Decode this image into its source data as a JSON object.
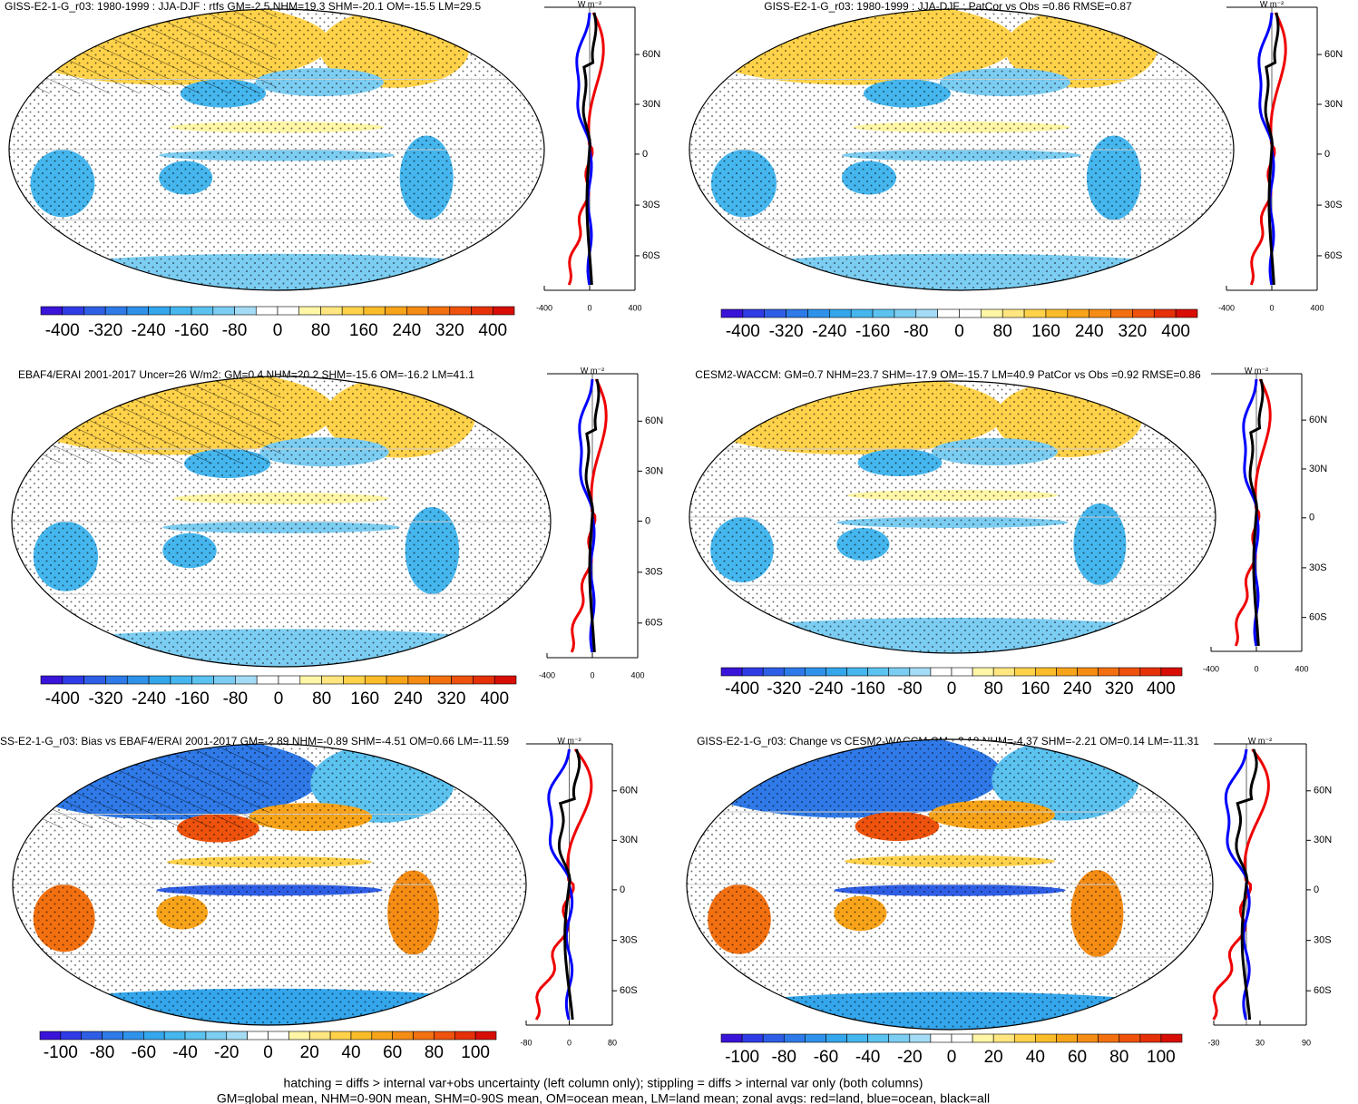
{
  "panels": [
    {
      "title": "GISS-E2-1-G_r03: 1980-1999 : JJA-DJF : rtfs GM=-2.5 NHM=19.3 SHM=-20.1 OM=-15.5 LM=29.5",
      "colorbar_labels": [
        -400,
        -320,
        -240,
        -160,
        -80,
        0,
        80,
        160,
        240,
        320,
        400
      ],
      "profile": {
        "unit": "W m⁻²",
        "lat_ticks": [
          "60N",
          "30N",
          "0",
          "30S",
          "60S"
        ],
        "x_ticks": [
          -400,
          0,
          400
        ]
      }
    },
    {
      "title": "GISS-E2-1-G_r03: 1980-1999 : JJA-DJF : PatCor vs Obs =0.86 RMSE=0.87",
      "colorbar_labels": [
        -400,
        -320,
        -240,
        -160,
        -80,
        0,
        80,
        160,
        240,
        320,
        400
      ],
      "profile": {
        "unit": "W m⁻²",
        "lat_ticks": [
          "60N",
          "30N",
          "0",
          "30S",
          "60S"
        ],
        "x_ticks": [
          -400,
          0,
          400
        ]
      }
    },
    {
      "title": "EBAF4/ERAI 2001-2017 Uncer=26 W/m2: GM=0.4 NHM=20.2 SHM=-15.6 OM=-16.2 LM=41.1",
      "colorbar_labels": [
        -400,
        -320,
        -240,
        -160,
        -80,
        0,
        80,
        160,
        240,
        320,
        400
      ],
      "profile": {
        "unit": "W m⁻²",
        "lat_ticks": [
          "60N",
          "30N",
          "0",
          "30S",
          "60S"
        ],
        "x_ticks": [
          -400,
          0,
          400
        ]
      }
    },
    {
      "title": "CESM2-WACCM: GM=0.7 NHM=23.7 SHM=-17.9 OM=-15.7 LM=40.9 PatCor vs Obs =0.92 RMSE=0.86",
      "colorbar_labels": [
        -400,
        -320,
        -240,
        -160,
        -80,
        0,
        80,
        160,
        240,
        320,
        400
      ],
      "profile": {
        "unit": "W m⁻²",
        "lat_ticks": [
          "60N",
          "30N",
          "0",
          "30S",
          "60S"
        ],
        "x_ticks": [
          -400,
          0,
          400
        ]
      }
    },
    {
      "title": "SS-E2-1-G_r03: Bias vs EBAF4/ERAI 2001-2017 GM=-2.89 NHM=-0.89 SHM=-4.51 OM=0.66 LM=-11.59",
      "colorbar_labels": [
        -100,
        -80,
        -60,
        -40,
        -20,
        0,
        20,
        40,
        60,
        80,
        100
      ],
      "profile": {
        "unit": "W m⁻²",
        "lat_ticks": [
          "60N",
          "30N",
          "0",
          "30S",
          "60S"
        ],
        "x_ticks": [
          -80,
          0,
          80
        ]
      }
    },
    {
      "title": "GISS-E2-1-G_r03: Change vs CESM2-WACCM GM=-3.18 NHM=-4.37 SHM=-2.21 OM=0.14 LM=-11.31",
      "colorbar_labels": [
        -100,
        -80,
        -60,
        -40,
        -20,
        0,
        20,
        40,
        60,
        80,
        100
      ],
      "profile": {
        "unit": "W m⁻²",
        "lat_ticks": [
          "60N",
          "30N",
          "0",
          "30S",
          "60S"
        ],
        "x_ticks": [
          -30,
          30,
          90
        ]
      }
    }
  ],
  "footer": [
    "hatching = diffs > internal var+obs uncertainty (left column only); stippling = diffs > internal var only (both columns)",
    "GM=global mean, NHM=0-90N mean, SHM=0-90S mean, OM=ocean mean, LM=land mean; zonal avgs: red=land, blue=ocean, black=all"
  ]
}
